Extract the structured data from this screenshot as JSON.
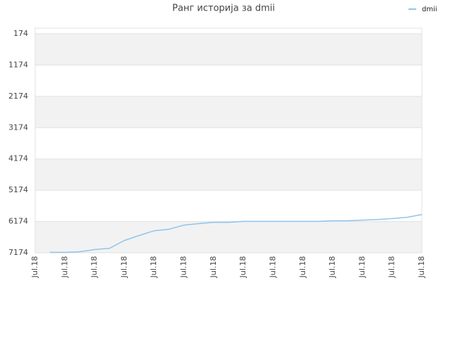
{
  "chart_data": {
    "type": "line",
    "title": "Ранг историја за dmii",
    "categories": [
      "Jul.18",
      null,
      "Jul.18",
      null,
      "Jul.18",
      null,
      "Jul.18",
      null,
      "Jul.18",
      null,
      "Jul.18",
      null,
      "Jul.18",
      null,
      "Jul.18",
      null,
      "Jul.18",
      null,
      "Jul.18",
      null,
      "Jul.18",
      null,
      "Jul.18",
      null,
      "Jul.18",
      null,
      "Jul.18"
    ],
    "series": [
      {
        "name": "dmii",
        "color": "#90c4ec",
        "values": [
          null,
          7160,
          7160,
          7140,
          7070,
          7030,
          6780,
          6620,
          6470,
          6420,
          6290,
          6240,
          6200,
          6200,
          6170,
          6170,
          6170,
          6170,
          6170,
          6170,
          6150,
          6150,
          6130,
          6110,
          6080,
          6040,
          5950
        ]
      }
    ],
    "ylim": [
      7174,
      -6
    ],
    "yticks": [
      174,
      1174,
      2174,
      3174,
      4174,
      5174,
      6174,
      7174
    ],
    "y_inverted": true,
    "grid": true,
    "legend": "top-right"
  }
}
